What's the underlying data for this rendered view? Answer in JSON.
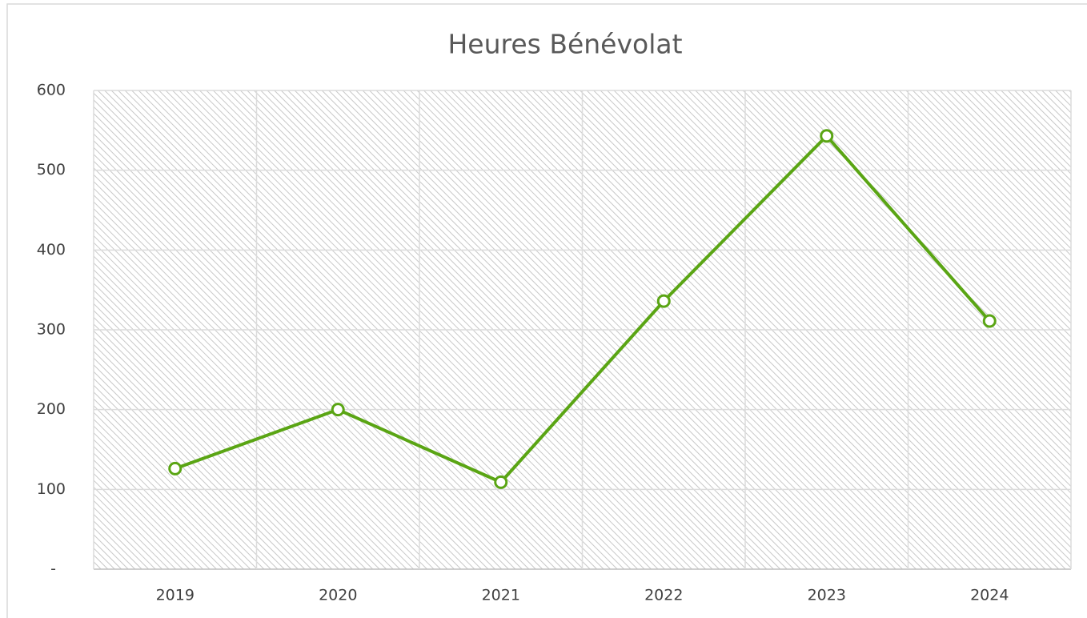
{
  "chart_data": {
    "type": "line",
    "title": "Heures Bénévolat",
    "categories": [
      "2019",
      "2020",
      "2021",
      "2022",
      "2023",
      "2024"
    ],
    "series": [
      {
        "name": "Heures Bénévolat",
        "color": "#5aa514",
        "values": [
          126,
          200,
          109,
          336,
          543,
          311
        ]
      }
    ],
    "ylim": [
      0,
      600
    ],
    "yticks": [
      {
        "value": 0,
        "label": "-"
      },
      100,
      200,
      300,
      400,
      500,
      600
    ],
    "grid": true
  }
}
